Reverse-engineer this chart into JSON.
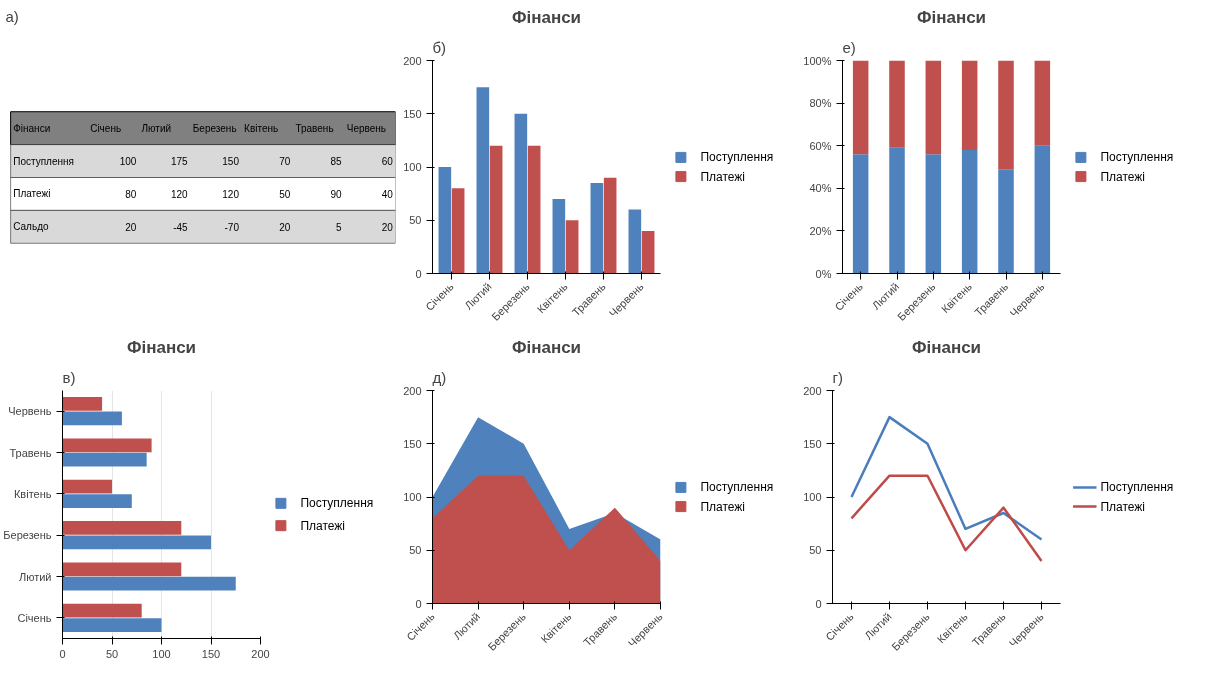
{
  "chart_data": [
    {
      "type": "other",
      "annotations": [
        "а)"
      ],
      "title": "Фінанси",
      "categories": [
        "Січень",
        "Лютий",
        "Березень",
        "Квітень",
        "Травень",
        "Червень"
      ],
      "data_labels": true,
      "series": [
        {
          "name": "Поступлення",
          "values": [
            100,
            175,
            150,
            70,
            85,
            60
          ]
        },
        {
          "name": "Платежі",
          "values": [
            80,
            120,
            120,
            50,
            90,
            40
          ]
        },
        {
          "name": "Сальдо",
          "values": [
            20,
            -45,
            -70,
            20,
            5,
            20
          ]
        }
      ]
    },
    {
      "type": "bar",
      "annotations": [
        "б)"
      ],
      "title": "Фінанси",
      "categories": [
        "Січень",
        "Лютий",
        "Березень",
        "Квітень",
        "Травень",
        "Червень"
      ],
      "ylim": [
        0,
        200
      ],
      "yticks": [
        0,
        50,
        100,
        150,
        200
      ],
      "legend": "right",
      "series": [
        {
          "name": "Поступлення",
          "color": "#4f81bd",
          "values": [
            100,
            175,
            150,
            70,
            85,
            60
          ]
        },
        {
          "name": "Платежі",
          "color": "#c0504d",
          "values": [
            80,
            120,
            120,
            50,
            90,
            40
          ]
        }
      ]
    },
    {
      "type": "bar",
      "stacked": true,
      "annotations": [
        "е)"
      ],
      "title": "Фінанси",
      "categories": [
        "Січень",
        "Лютий",
        "Березень",
        "Квітень",
        "Травень",
        "Червень"
      ],
      "ylim": [
        0,
        100
      ],
      "yticks": [
        {
          "value": 0,
          "label": "0%"
        },
        {
          "value": 20,
          "label": "20%"
        },
        {
          "value": 40,
          "label": "40%"
        },
        {
          "value": 60,
          "label": "60%"
        },
        {
          "value": 80,
          "label": "80%"
        },
        {
          "value": 100,
          "label": "100%"
        }
      ],
      "legend": "right",
      "series": [
        {
          "name": "Поступлення",
          "color": "#4f81bd",
          "values": [
            56,
            59,
            56,
            58,
            49,
            60
          ]
        },
        {
          "name": "Платежі",
          "color": "#c0504d",
          "values": [
            44,
            41,
            44,
            42,
            51,
            40
          ]
        }
      ]
    },
    {
      "type": "bar",
      "orientation": "horizontal",
      "annotations": [
        "в)"
      ],
      "title": "Фінанси",
      "categories": [
        "Червень",
        "Травень",
        "Квітень",
        "Березень",
        "Лютий",
        "Січень"
      ],
      "xlim": [
        0,
        200
      ],
      "xticks": [
        0,
        50,
        100,
        150,
        200
      ],
      "grid": "x",
      "legend": "right",
      "series": [
        {
          "name": "Поступлення",
          "color": "#4f81bd",
          "values": [
            60,
            85,
            70,
            150,
            175,
            100
          ]
        },
        {
          "name": "Платежі",
          "color": "#c0504d",
          "values": [
            40,
            90,
            50,
            120,
            120,
            80
          ]
        }
      ]
    },
    {
      "type": "area",
      "annotations": [
        "д)"
      ],
      "title": "Фінанси",
      "categories": [
        "Січень",
        "Лютий",
        "Березень",
        "Квітень",
        "Травень",
        "Червень"
      ],
      "ylim": [
        0,
        200
      ],
      "yticks": [
        0,
        50,
        100,
        150,
        200
      ],
      "legend": "right",
      "series": [
        {
          "name": "Поступлення",
          "color": "#4f81bd",
          "values": [
            100,
            175,
            150,
            70,
            85,
            60
          ]
        },
        {
          "name": "Платежі",
          "color": "#c0504d",
          "values": [
            80,
            120,
            120,
            50,
            90,
            40
          ]
        }
      ]
    },
    {
      "type": "line",
      "annotations": [
        "г)"
      ],
      "title": "Фінанси",
      "categories": [
        "Січень",
        "Лютий",
        "Березень",
        "Квітень",
        "Травень",
        "Червень"
      ],
      "ylim": [
        0,
        200
      ],
      "yticks": [
        0,
        50,
        100,
        150,
        200
      ],
      "legend": "right",
      "series": [
        {
          "name": "Поступлення",
          "color": "#4a7ebb",
          "values": [
            100,
            175,
            150,
            70,
            85,
            60
          ]
        },
        {
          "name": "Платежі",
          "color": "#be4b48",
          "values": [
            80,
            120,
            120,
            50,
            90,
            40
          ]
        }
      ]
    }
  ]
}
